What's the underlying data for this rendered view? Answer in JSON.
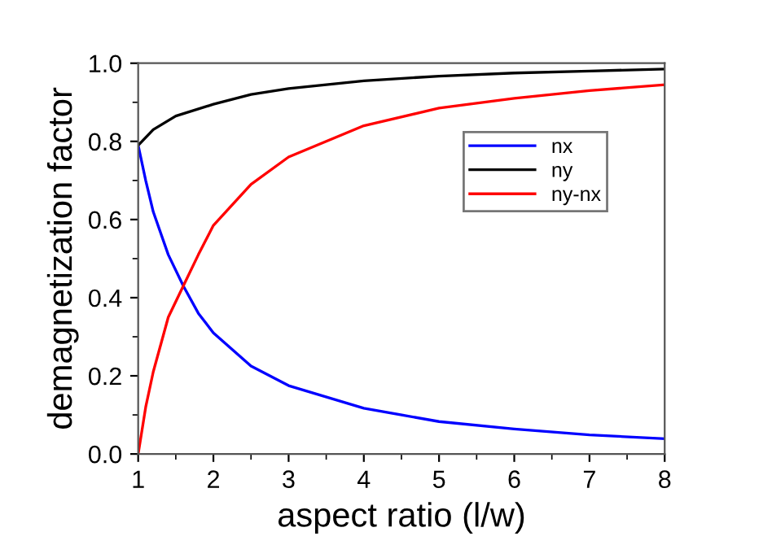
{
  "chart_data": {
    "type": "line",
    "xlabel": "aspect ratio (l/w)",
    "ylabel": "demagnetization factor",
    "xlim": [
      1,
      8
    ],
    "ylim": [
      0,
      1.0
    ],
    "xticks": [
      1,
      2,
      3,
      4,
      5,
      6,
      7,
      8
    ],
    "yticks": [
      {
        "value": 0,
        "label": "0.0"
      },
      0.2,
      0.4,
      0.6,
      0.8,
      {
        "value": 1.0,
        "label": "1.0"
      }
    ],
    "grid": false,
    "legend": "top right",
    "marker": "none",
    "line_style": "solid",
    "series": [
      {
        "name": "nx",
        "color": "#0000ff",
        "x": [
          1,
          1.1,
          1.2,
          1.4,
          1.6,
          1.8,
          2,
          2.5,
          3,
          4,
          5,
          6,
          7,
          8
        ],
        "values": [
          0.79,
          0.7,
          0.62,
          0.51,
          0.43,
          0.36,
          0.31,
          0.225,
          0.175,
          0.117,
          0.083,
          0.064,
          0.049,
          0.039
        ]
      },
      {
        "name": "ny",
        "color": "#000000",
        "x": [
          1,
          1.2,
          1.5,
          2,
          2.5,
          3,
          4,
          5,
          6,
          7,
          8
        ],
        "values": [
          0.79,
          0.83,
          0.865,
          0.895,
          0.92,
          0.935,
          0.955,
          0.967,
          0.975,
          0.98,
          0.985
        ]
      },
      {
        "name": "ny-nx",
        "color": "#ff0000",
        "x": [
          1,
          1.1,
          1.2,
          1.4,
          1.6,
          1.8,
          2,
          2.5,
          3,
          4,
          5,
          6,
          7,
          8
        ],
        "values": [
          0,
          0.12,
          0.21,
          0.35,
          0.43,
          0.51,
          0.585,
          0.69,
          0.76,
          0.84,
          0.885,
          0.91,
          0.93,
          0.945
        ]
      }
    ]
  }
}
